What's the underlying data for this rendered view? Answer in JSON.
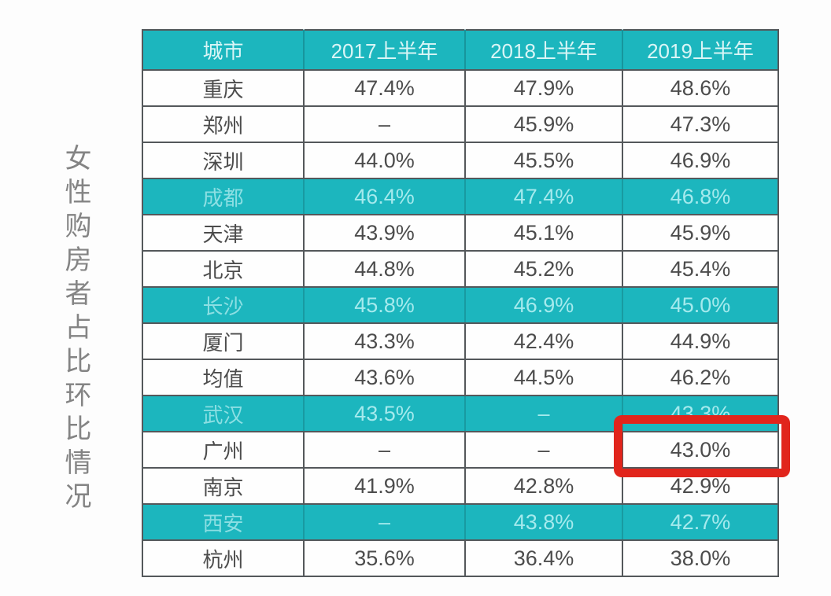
{
  "page": {
    "title_vertical": "女性购房者占比环比情况"
  },
  "colors": {
    "teal_background": "#1cb6be",
    "header_text": "#d9f5f6",
    "teal_row_text": "#a5eaed",
    "body_text": "#4c4c4c",
    "grid_border": "#54585b",
    "highlight_box_red": "#e1251c",
    "vertical_title_gray": "#848484"
  },
  "table": {
    "columns": [
      "城市",
      "2017上半年",
      "2018上半年",
      "2019上半年"
    ],
    "rows": [
      {
        "city": "重庆",
        "values": [
          "47.4%",
          "47.9%",
          "48.6%"
        ],
        "highlight": false
      },
      {
        "city": "郑州",
        "values": [
          "–",
          "45.9%",
          "47.3%"
        ],
        "highlight": false
      },
      {
        "city": "深圳",
        "values": [
          "44.0%",
          "45.5%",
          "46.9%"
        ],
        "highlight": false
      },
      {
        "city": "成都",
        "values": [
          "46.4%",
          "47.4%",
          "46.8%"
        ],
        "highlight": true
      },
      {
        "city": "天津",
        "values": [
          "43.9%",
          "45.1%",
          "45.9%"
        ],
        "highlight": false
      },
      {
        "city": "北京",
        "values": [
          "44.8%",
          "45.2%",
          "45.4%"
        ],
        "highlight": false
      },
      {
        "city": "长沙",
        "values": [
          "45.8%",
          "46.9%",
          "45.0%"
        ],
        "highlight": true
      },
      {
        "city": "厦门",
        "values": [
          "43.3%",
          "42.4%",
          "44.9%"
        ],
        "highlight": false
      },
      {
        "city": "均值",
        "values": [
          "43.6%",
          "44.5%",
          "46.2%"
        ],
        "highlight": false
      },
      {
        "city": "武汉",
        "values": [
          "43.5%",
          "–",
          "43.3%"
        ],
        "highlight": true
      },
      {
        "city": "广州",
        "values": [
          "–",
          "–",
          "43.0%"
        ],
        "highlight": false
      },
      {
        "city": "南京",
        "values": [
          "41.9%",
          "42.8%",
          "42.9%"
        ],
        "highlight": false
      },
      {
        "city": "西安",
        "values": [
          "–",
          "43.8%",
          "42.7%"
        ],
        "highlight": true
      },
      {
        "city": "杭州",
        "values": [
          "35.6%",
          "36.4%",
          "38.0%"
        ],
        "highlight": false
      }
    ]
  },
  "annotation": {
    "type": "red-box-highlight",
    "target_row": "广州",
    "target_column": "2019上半年",
    "target_value": "43.0%"
  },
  "chart_data": {
    "type": "table",
    "title": "女性购房者占比环比情况",
    "columns": [
      "城市",
      "2017上半年",
      "2018上半年",
      "2019上半年"
    ],
    "categories": [
      "2017上半年",
      "2018上半年",
      "2019上半年"
    ],
    "unit": "%",
    "series": [
      {
        "name": "重庆",
        "values": [
          47.4,
          47.9,
          48.6
        ]
      },
      {
        "name": "郑州",
        "values": [
          null,
          45.9,
          47.3
        ]
      },
      {
        "name": "深圳",
        "values": [
          44.0,
          45.5,
          46.9
        ]
      },
      {
        "name": "成都",
        "values": [
          46.4,
          47.4,
          46.8
        ]
      },
      {
        "name": "天津",
        "values": [
          43.9,
          45.1,
          45.9
        ]
      },
      {
        "name": "北京",
        "values": [
          44.8,
          45.2,
          45.4
        ]
      },
      {
        "name": "长沙",
        "values": [
          45.8,
          46.9,
          45.0
        ]
      },
      {
        "name": "厦门",
        "values": [
          43.3,
          42.4,
          44.9
        ]
      },
      {
        "name": "均值",
        "values": [
          43.6,
          44.5,
          46.2
        ]
      },
      {
        "name": "武汉",
        "values": [
          43.5,
          null,
          43.3
        ]
      },
      {
        "name": "广州",
        "values": [
          null,
          null,
          43.0
        ]
      },
      {
        "name": "南京",
        "values": [
          41.9,
          42.8,
          42.9
        ]
      },
      {
        "name": "西安",
        "values": [
          null,
          43.8,
          42.7
        ]
      },
      {
        "name": "杭州",
        "values": [
          35.6,
          36.4,
          38.0
        ]
      }
    ],
    "highlighted_rows": [
      "成都",
      "长沙",
      "武汉",
      "西安"
    ],
    "annotations": [
      {
        "type": "red-box",
        "row": "广州",
        "column": "2019上半年",
        "value": 43.0
      }
    ],
    "legend_position": "none",
    "grid": true
  }
}
